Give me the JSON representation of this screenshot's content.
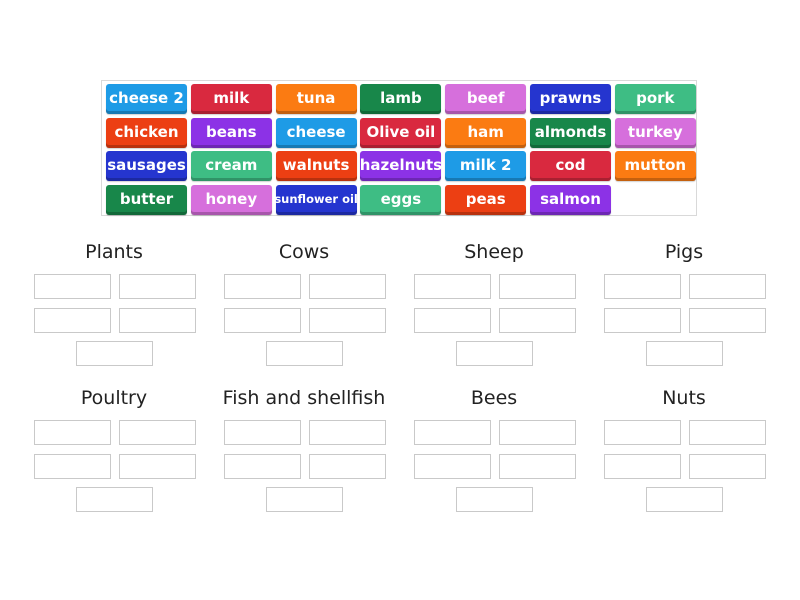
{
  "tiles": [
    {
      "label": "cheese 2",
      "color": "#1e9be6"
    },
    {
      "label": "milk",
      "color": "#d9293f"
    },
    {
      "label": "tuna",
      "color": "#fb7b12"
    },
    {
      "label": "lamb",
      "color": "#18874a"
    },
    {
      "label": "beef",
      "color": "#d66fdc"
    },
    {
      "label": "prawns",
      "color": "#2535cf"
    },
    {
      "label": "pork",
      "color": "#3ebd84"
    },
    {
      "label": "chicken",
      "color": "#ec3f13"
    },
    {
      "label": "beans",
      "color": "#8c32e6"
    },
    {
      "label": "cheese",
      "color": "#1e9be6"
    },
    {
      "label": "Olive oil",
      "color": "#d9293f"
    },
    {
      "label": "ham",
      "color": "#fb7b12"
    },
    {
      "label": "almonds",
      "color": "#18874a"
    },
    {
      "label": "turkey",
      "color": "#d66fdc"
    },
    {
      "label": "sausages",
      "color": "#2535cf"
    },
    {
      "label": "cream",
      "color": "#3ebd84"
    },
    {
      "label": "walnuts",
      "color": "#ec3f13"
    },
    {
      "label": "hazelnuts",
      "color": "#8c32e6"
    },
    {
      "label": "milk 2",
      "color": "#1e9be6"
    },
    {
      "label": "cod",
      "color": "#d9293f"
    },
    {
      "label": "mutton",
      "color": "#fb7b12"
    },
    {
      "label": "butter",
      "color": "#18874a"
    },
    {
      "label": "honey",
      "color": "#d66fdc"
    },
    {
      "label": "sunflower oil",
      "color": "#2535cf"
    },
    {
      "label": "eggs",
      "color": "#3ebd84"
    },
    {
      "label": "peas",
      "color": "#ec3f13"
    },
    {
      "label": "salmon",
      "color": "#8c32e6"
    }
  ],
  "groups": [
    {
      "title": "Plants"
    },
    {
      "title": "Cows"
    },
    {
      "title": "Sheep"
    },
    {
      "title": "Pigs"
    },
    {
      "title": "Poultry"
    },
    {
      "title": "Fish and shellfish"
    },
    {
      "title": "Bees"
    },
    {
      "title": "Nuts"
    }
  ]
}
